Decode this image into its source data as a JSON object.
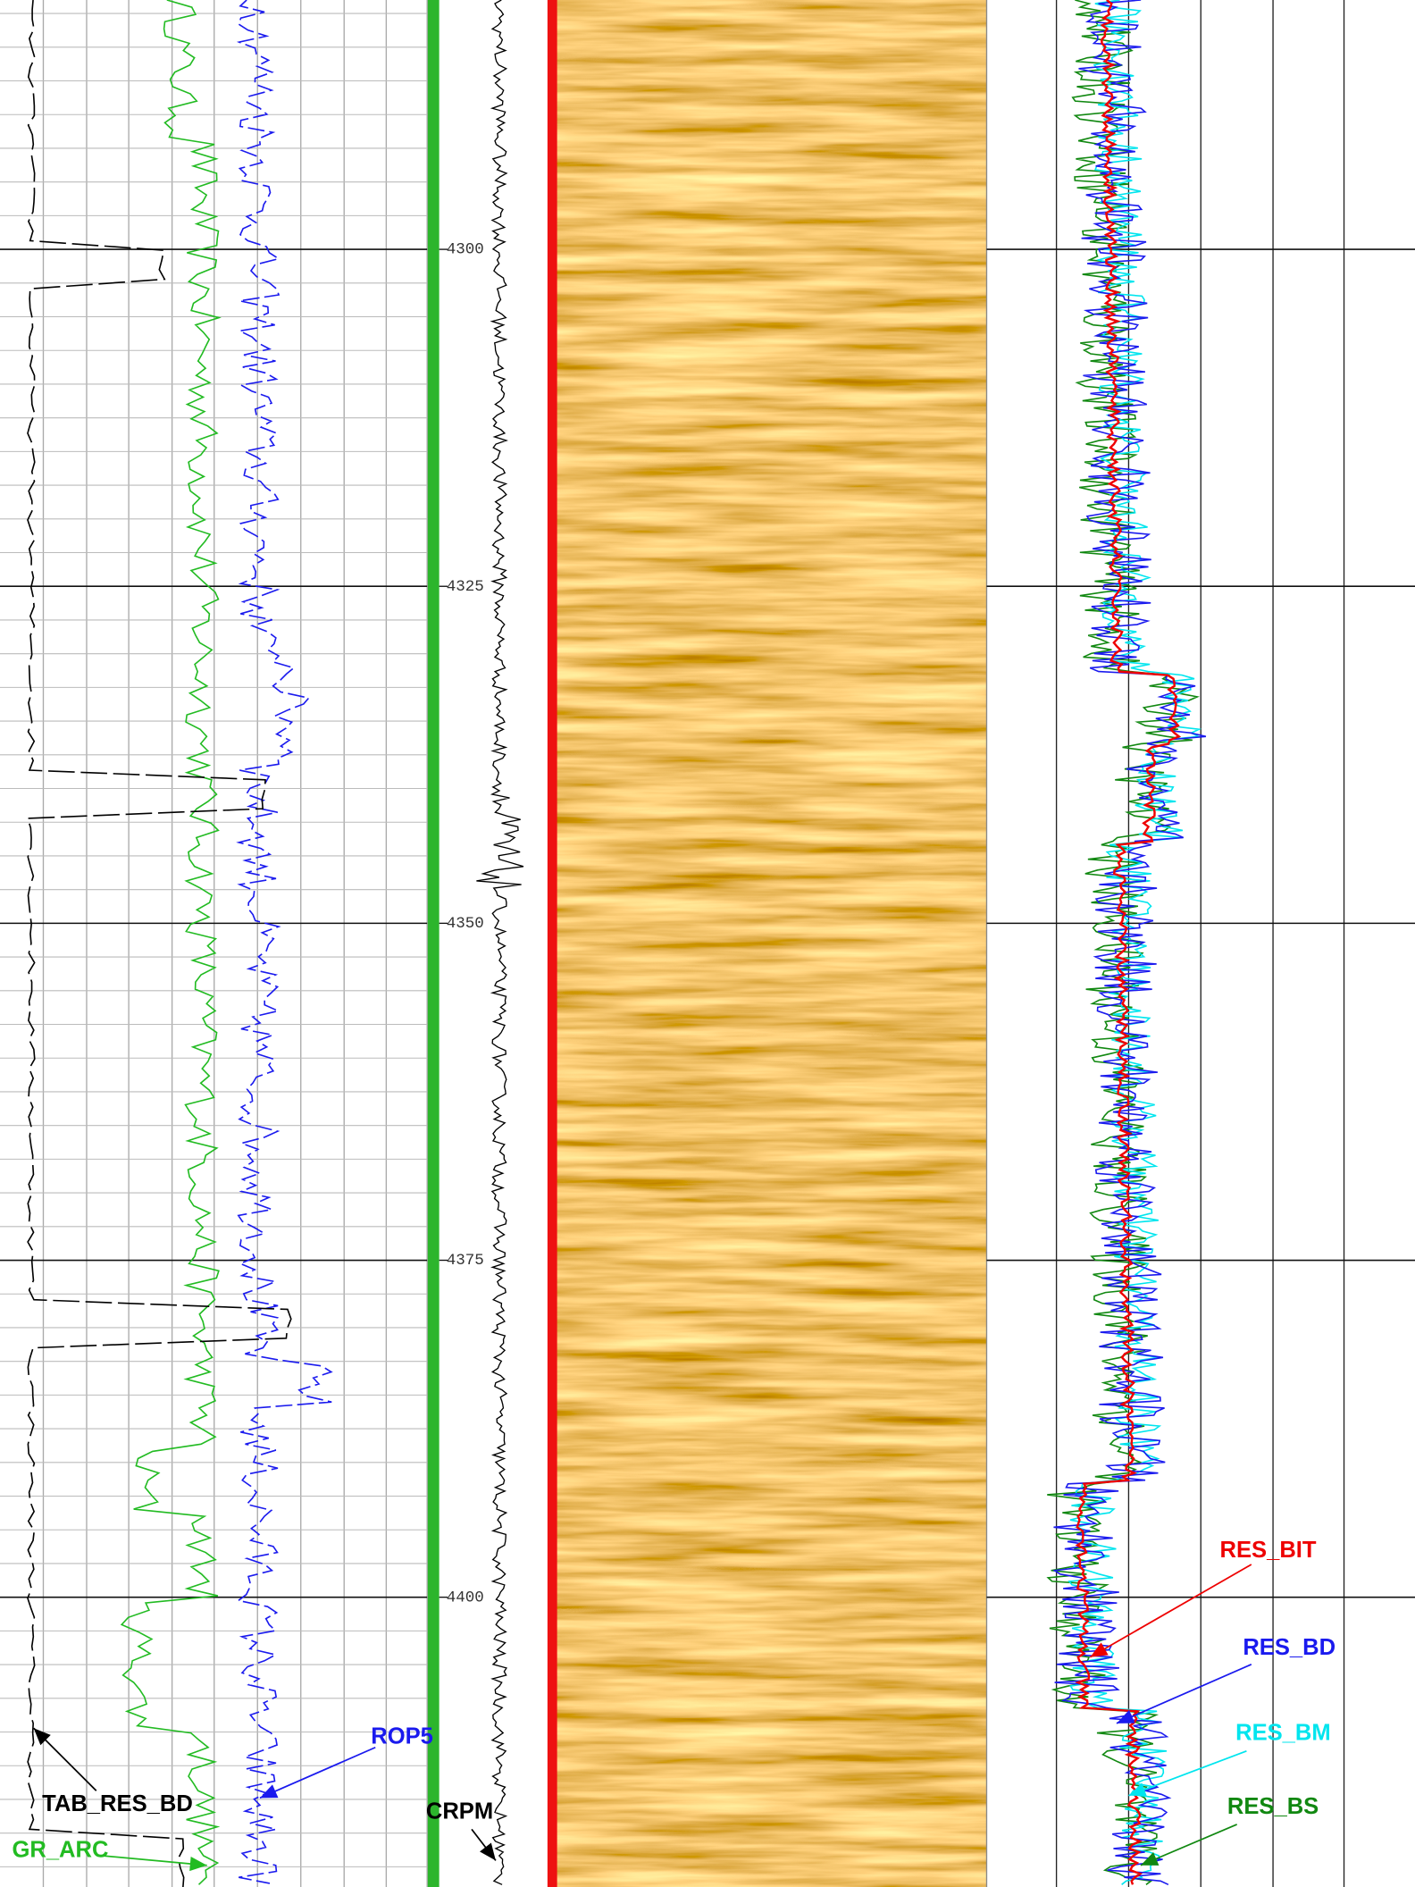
{
  "chart_data": {
    "type": "well_log",
    "ylim": [
      4281.5,
      4421.5
    ],
    "yticks": [
      4300,
      4325,
      4350,
      4375,
      4400
    ],
    "annotations": [
      {
        "text": "TAB_RES_BD",
        "color": "#000000"
      },
      {
        "text": "GR_ARC",
        "color": "#22bb22"
      },
      {
        "text": "ROP5",
        "color": "#1a1aee"
      },
      {
        "text": "CRPM",
        "color": "#000000"
      },
      {
        "text": "RES_BIT",
        "color": "#ee0000"
      },
      {
        "text": "RES_BD",
        "color": "#1a1aee"
      },
      {
        "text": "RES_BM",
        "color": "#00e5ee"
      },
      {
        "text": "RES_BS",
        "color": "#118811"
      }
    ]
  }
}
